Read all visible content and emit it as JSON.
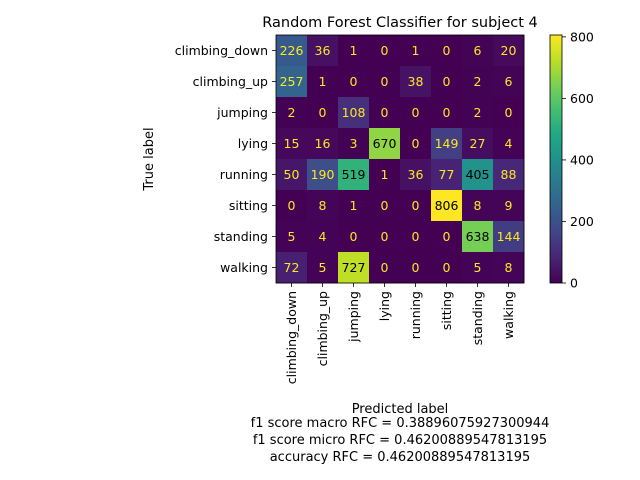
{
  "chart_data": {
    "type": "heatmap",
    "title": "Random Forest Classifier for subject 4",
    "xlabel": "Predicted label",
    "ylabel": "True label",
    "x_categories": [
      "climbing_down",
      "climbing_up",
      "jumping",
      "lying",
      "running",
      "sitting",
      "standing",
      "walking"
    ],
    "y_categories": [
      "climbing_down",
      "climbing_up",
      "jumping",
      "lying",
      "running",
      "sitting",
      "standing",
      "walking"
    ],
    "values": [
      [
        226,
        36,
        1,
        0,
        1,
        0,
        6,
        20
      ],
      [
        257,
        1,
        0,
        0,
        38,
        0,
        2,
        6
      ],
      [
        2,
        0,
        108,
        0,
        0,
        0,
        2,
        0
      ],
      [
        15,
        16,
        3,
        670,
        0,
        149,
        27,
        4
      ],
      [
        50,
        190,
        519,
        1,
        36,
        77,
        405,
        88
      ],
      [
        0,
        8,
        1,
        0,
        0,
        806,
        8,
        9
      ],
      [
        5,
        4,
        0,
        0,
        0,
        0,
        638,
        144
      ],
      [
        72,
        5,
        727,
        0,
        0,
        0,
        5,
        8
      ]
    ],
    "colormap": "viridis",
    "vmin": 0,
    "vmax": 806,
    "colorbar_ticks": [
      0,
      200,
      400,
      600,
      800
    ],
    "colorbar_tick_labels": [
      "0",
      "200",
      "400",
      "600",
      "800"
    ]
  },
  "footer": {
    "f1_macro": "f1 score macro RFC = 0.38896075927300944",
    "f1_micro": "f1 score micro RFC = 0.46200889547813195",
    "accuracy": "accuracy RFC = 0.46200889547813195"
  }
}
